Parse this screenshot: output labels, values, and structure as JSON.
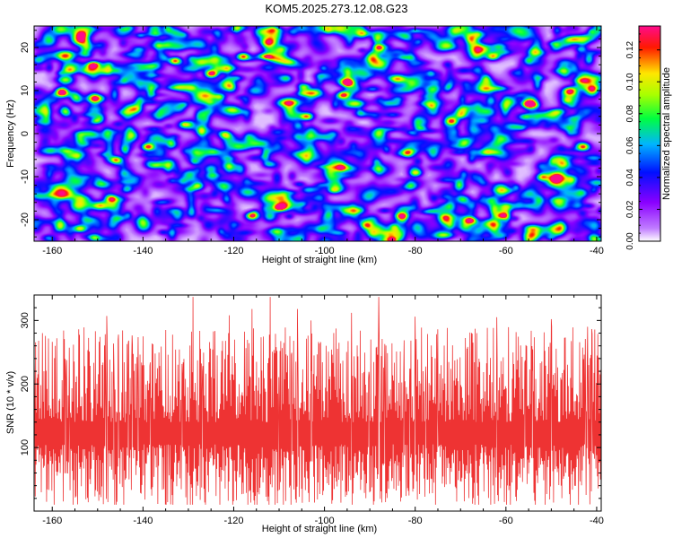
{
  "title": "KOM5.2025.273.12.08.G23",
  "chart_data": [
    {
      "type": "heatmap",
      "name": "spectrogram",
      "xlabel": "Height of straight line (km)",
      "ylabel": "Frequency (Hz)",
      "xlim": [
        -164,
        -39
      ],
      "ylim": [
        -25,
        25
      ],
      "xticks": [
        -160,
        -140,
        -120,
        -100,
        -80,
        -60,
        -40
      ],
      "yticks": [
        -20,
        -10,
        0,
        10,
        20
      ],
      "colorbar": {
        "label": "Normalized spectral amplitude",
        "range": [
          0,
          0.135
        ],
        "ticks": [
          0.0,
          0.02,
          0.04,
          0.06,
          0.08,
          0.1,
          0.12
        ],
        "tick_labels": [
          "0.00",
          "0.02",
          "0.04",
          "0.06",
          "0.08",
          "0.10",
          "0.12"
        ],
        "colors": [
          "#ffffff",
          "#9900ff",
          "#0000ff",
          "#00ccff",
          "#00ff44",
          "#ffee00",
          "#ff0000",
          "#ff0088"
        ]
      },
      "hotspots": [
        {
          "x": -151,
          "y": 16,
          "v": 0.13
        },
        {
          "x": -133,
          "y": 17,
          "v": 0.12
        },
        {
          "x": -125,
          "y": 14,
          "v": 0.13
        },
        {
          "x": -118,
          "y": 18,
          "v": 0.12
        },
        {
          "x": -95,
          "y": 12,
          "v": 0.13
        },
        {
          "x": -96,
          "y": 9,
          "v": 0.11
        },
        {
          "x": -158,
          "y": 10,
          "v": 0.11
        },
        {
          "x": -55,
          "y": 7,
          "v": 0.13
        },
        {
          "x": -139,
          "y": -3,
          "v": 0.12
        },
        {
          "x": -146,
          "y": -6,
          "v": 0.11
        },
        {
          "x": -116,
          "y": -19,
          "v": 0.13
        },
        {
          "x": -110,
          "y": -17,
          "v": 0.11
        },
        {
          "x": -83,
          "y": -19,
          "v": 0.12
        },
        {
          "x": -68,
          "y": -20,
          "v": 0.13
        },
        {
          "x": -61,
          "y": -19,
          "v": 0.11
        },
        {
          "x": -147,
          "y": -15,
          "v": 0.1
        },
        {
          "x": -80,
          "y": -9,
          "v": 0.1
        },
        {
          "x": -52,
          "y": -10,
          "v": 0.1
        },
        {
          "x": -72,
          "y": 3,
          "v": 0.09
        },
        {
          "x": -46,
          "y": 10,
          "v": 0.09
        },
        {
          "x": -104,
          "y": 4,
          "v": 0.09
        },
        {
          "x": -128,
          "y": -12,
          "v": 0.09
        },
        {
          "x": -88,
          "y": 20,
          "v": 0.09
        },
        {
          "x": -43,
          "y": -3,
          "v": 0.09
        },
        {
          "x": -154,
          "y": -22,
          "v": 0.09
        },
        {
          "x": -122,
          "y": 0,
          "v": 0.08
        },
        {
          "x": -98,
          "y": -13,
          "v": 0.08
        },
        {
          "x": -63,
          "y": 18,
          "v": 0.09
        }
      ]
    },
    {
      "type": "line",
      "name": "snr",
      "xlabel": "Height of straight line (km)",
      "ylabel": "SNR (10 * v/v)",
      "xlim": [
        -164,
        -39
      ],
      "ylim": [
        0,
        340
      ],
      "xticks": [
        -160,
        -140,
        -120,
        -100,
        -80,
        -60,
        -40
      ],
      "yticks": [
        100,
        200,
        300
      ],
      "color": "#ee3333",
      "baseline": 120,
      "peaks": [
        {
          "x": -163,
          "y": 268
        },
        {
          "x": -159,
          "y": 272
        },
        {
          "x": -148,
          "y": 307
        },
        {
          "x": -140,
          "y": 275
        },
        {
          "x": -135,
          "y": 285
        },
        {
          "x": -129,
          "y": 337
        },
        {
          "x": -121,
          "y": 308
        },
        {
          "x": -116,
          "y": 318
        },
        {
          "x": -112,
          "y": 337
        },
        {
          "x": -106,
          "y": 318
        },
        {
          "x": -103,
          "y": 300
        },
        {
          "x": -94,
          "y": 312
        },
        {
          "x": -88,
          "y": 337
        },
        {
          "x": -80,
          "y": 306
        },
        {
          "x": -75,
          "y": 286
        },
        {
          "x": -62,
          "y": 305
        },
        {
          "x": -50,
          "y": 302
        },
        {
          "x": -42,
          "y": 290
        }
      ]
    }
  ]
}
